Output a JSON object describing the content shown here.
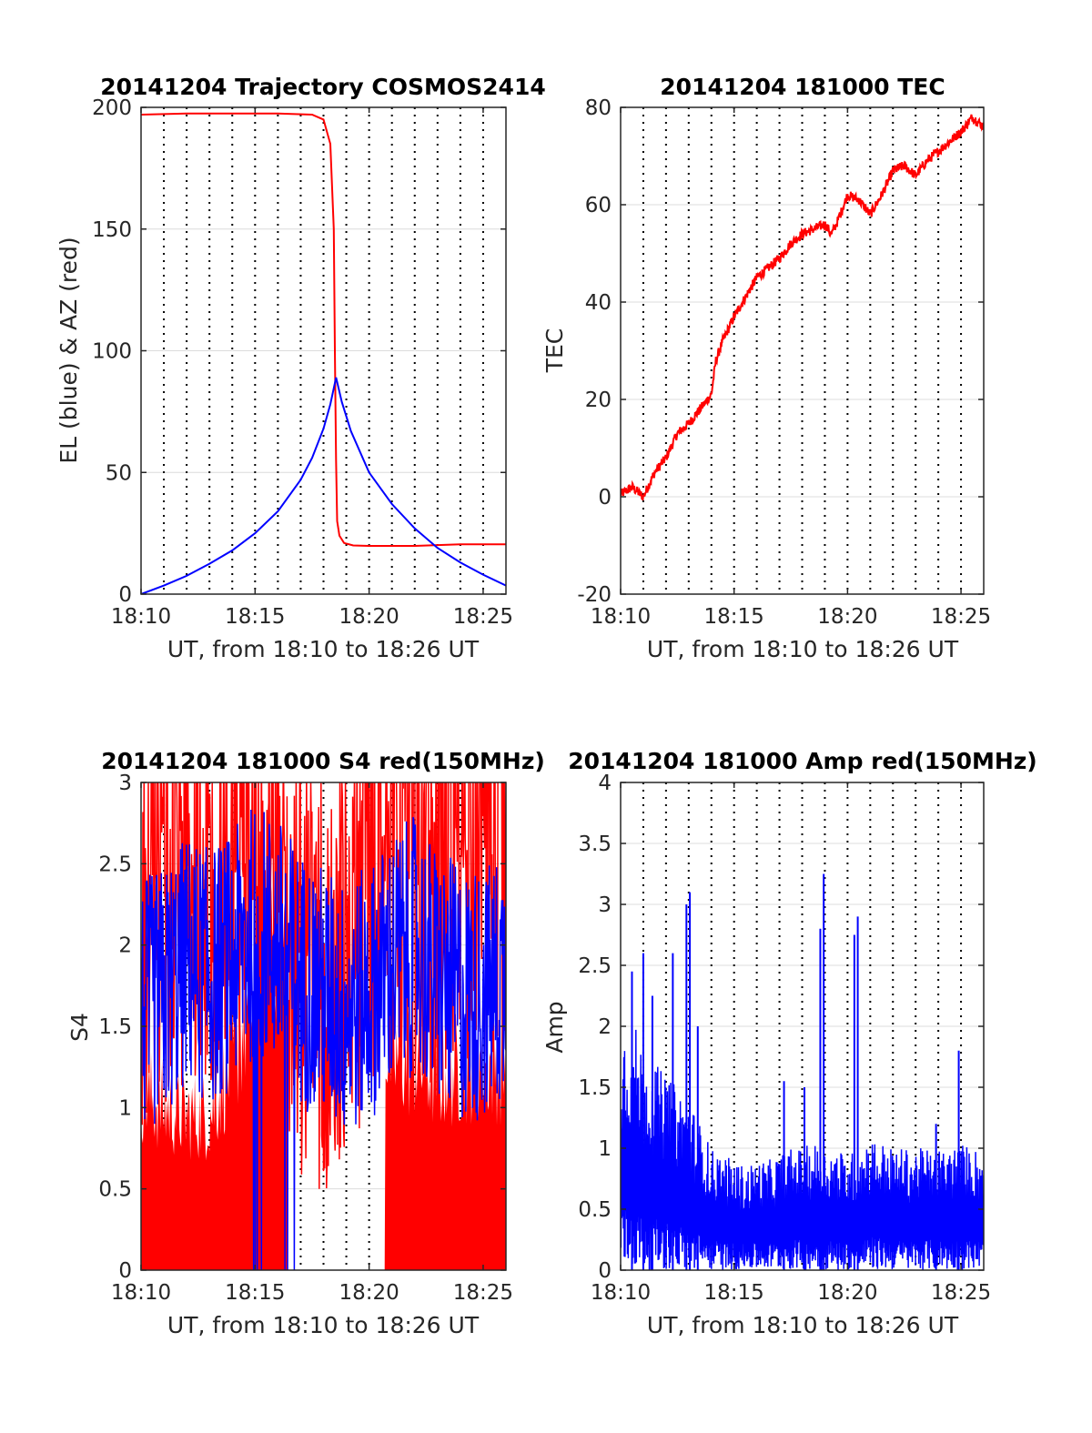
{
  "figure": {
    "background": "#ffffff"
  },
  "chart_data": [
    {
      "id": "trajectory",
      "type": "line",
      "title": "20141204 Trajectory COSMOS2414",
      "xlabel": "UT, from 18:10 to 18:26 UT",
      "ylabel": "EL (blue) & AZ (red)",
      "xlim": [
        0,
        16
      ],
      "ylim": [
        0,
        200
      ],
      "xticks": [
        0,
        5,
        10,
        15
      ],
      "xticklabels": [
        "18:10",
        "18:15",
        "18:20",
        "18:25"
      ],
      "yticks": [
        0,
        50,
        100,
        150,
        200
      ],
      "yticklabels": [
        "0",
        "50",
        "100",
        "150",
        "200"
      ],
      "grid": true,
      "series": [
        {
          "role": "azimuth",
          "color": "#ff0000",
          "x": [
            0,
            2,
            4,
            6,
            7.5,
            8.0,
            8.3,
            8.45,
            8.5,
            8.55,
            8.6,
            8.7,
            8.9,
            9.3,
            10,
            12,
            14,
            16
          ],
          "y": [
            197,
            197.5,
            197.5,
            197.5,
            197,
            195,
            185,
            150,
            100,
            55,
            30,
            24,
            21,
            20,
            19.8,
            19.8,
            20.5,
            20.5
          ]
        },
        {
          "role": "elevation",
          "color": "#0000ff",
          "x": [
            0,
            1,
            2,
            3,
            4,
            5,
            6,
            7,
            7.5,
            8,
            8.3,
            8.55,
            8.8,
            9.2,
            10,
            11,
            12,
            13,
            14,
            15,
            16
          ],
          "y": [
            0,
            3.5,
            7.5,
            12.5,
            18,
            25,
            34,
            47,
            56,
            68,
            78,
            89,
            79,
            67,
            50,
            37,
            27,
            19,
            13,
            8,
            3.5
          ]
        }
      ]
    },
    {
      "id": "tec",
      "type": "line",
      "title": "20141204 181000 TEC",
      "xlabel": "UT, from 18:10 to 18:26 UT",
      "ylabel": "TEC",
      "xlim": [
        0,
        16
      ],
      "ylim": [
        -20,
        80
      ],
      "xticks": [
        0,
        5,
        10,
        15
      ],
      "xticklabels": [
        "18:10",
        "18:15",
        "18:20",
        "18:25"
      ],
      "yticks": [
        -20,
        0,
        20,
        40,
        60,
        80
      ],
      "yticklabels": [
        "-20",
        "0",
        "20",
        "40",
        "60",
        "80"
      ],
      "grid": true,
      "series": [
        {
          "color": "#ff0000",
          "x": [
            0,
            0.5,
            1,
            1.5,
            2,
            2.5,
            3,
            3.5,
            4,
            4.2,
            4.5,
            5,
            5.5,
            6,
            6.5,
            7,
            7.5,
            8,
            8.5,
            9,
            9.3,
            9.6,
            10,
            10.5,
            11,
            11.5,
            12,
            12.5,
            13,
            13.5,
            14,
            14.5,
            15,
            15.5,
            16
          ],
          "y": [
            0.5,
            2,
            0,
            5,
            8,
            13,
            15,
            18,
            21,
            28,
            32,
            37,
            41,
            45,
            47,
            49,
            52,
            54,
            55,
            56,
            54,
            57,
            62,
            61,
            58,
            62,
            67,
            68,
            66,
            69,
            71,
            73,
            75,
            78,
            76
          ]
        }
      ]
    },
    {
      "id": "s4",
      "type": "line",
      "title": "20141204 181000 S4 red(150MHz)",
      "xlabel": "UT, from 18:10 to 18:26 UT",
      "ylabel": "S4",
      "xlim": [
        0,
        16
      ],
      "ylim": [
        0,
        3
      ],
      "xticks": [
        0,
        5,
        10,
        15
      ],
      "xticklabels": [
        "18:10",
        "18:15",
        "18:20",
        "18:25"
      ],
      "yticks": [
        0,
        0.5,
        1,
        1.5,
        2,
        2.5,
        3
      ],
      "yticklabels": [
        "0",
        "0.5",
        "1",
        "1.5",
        "2",
        "2.5",
        "3"
      ],
      "grid": true,
      "series": [
        {
          "role": "fill",
          "color": "#ff0000",
          "x": [
            0,
            1,
            2,
            3,
            4,
            4.5,
            5,
            5.5,
            6,
            6.5,
            7,
            7.5,
            8,
            8.5,
            9,
            9.5,
            10,
            10.5,
            11,
            12,
            13,
            14,
            15,
            16
          ],
          "y": [
            1.1,
            1.0,
            0.95,
            0.95,
            1.3,
            1.5,
            1.6,
            2.3,
            2.1,
            1.9,
            1.7,
            1.4,
            1.3,
            1.2,
            1.3,
            1.4,
            1.5,
            1.5,
            1.3,
            1.3,
            1.2,
            1.25,
            1.3,
            1.25
          ]
        },
        {
          "role": "noisy",
          "color": "#ff0000",
          "x": [
            0,
            1,
            2,
            3,
            4,
            5,
            6,
            7,
            8,
            9,
            10,
            11,
            12,
            13,
            14,
            15,
            16
          ],
          "y": [
            2.3,
            2.5,
            2.6,
            2.4,
            2.3,
            2.4,
            2.2,
            2.0,
            1.9,
            2.0,
            2.5,
            2.6,
            2.7,
            2.6,
            2.7,
            2.8,
            2.8
          ]
        },
        {
          "role": "noisy",
          "color": "#0000ff",
          "x": [
            0,
            1,
            2,
            3,
            4,
            5,
            6,
            7,
            8,
            9,
            10,
            11,
            12,
            13,
            14,
            15,
            16
          ],
          "y": [
            1.6,
            1.7,
            1.9,
            1.8,
            1.9,
            2.1,
            2.0,
            1.8,
            1.7,
            1.6,
            1.7,
            1.9,
            2.0,
            1.8,
            1.7,
            1.7,
            1.8
          ]
        }
      ]
    },
    {
      "id": "amp",
      "type": "line",
      "title": "20141204 181000 Amp red(150MHz)",
      "xlabel": "UT, from 18:10 to 18:26 UT",
      "ylabel": "Amp",
      "xlim": [
        0,
        16
      ],
      "ylim": [
        0,
        4
      ],
      "xticks": [
        0,
        5,
        10,
        15
      ],
      "xticklabels": [
        "18:10",
        "18:15",
        "18:20",
        "18:25"
      ],
      "yticks": [
        0,
        0.5,
        1,
        1.5,
        2,
        2.5,
        3,
        3.5,
        4
      ],
      "yticklabels": [
        "0",
        "0.5",
        "1",
        "1.5",
        "2",
        "2.5",
        "3",
        "3.5",
        "4"
      ],
      "grid": true,
      "series": [
        {
          "color": "#0000ff",
          "envelope_x": [
            0,
            0.5,
            1,
            1.5,
            2,
            2.5,
            3,
            3.5,
            4,
            4.5,
            5,
            5.5,
            6,
            6.5,
            7,
            7.5,
            8,
            8.5,
            9,
            9.5,
            10,
            10.5,
            11,
            11.5,
            12,
            12.5,
            13,
            13.5,
            14,
            14.5,
            15,
            15.5,
            16
          ],
          "envelope_y": [
            2.0,
            2.1,
            1.8,
            1.7,
            1.6,
            1.5,
            1.4,
            1.2,
            1.0,
            0.95,
            0.9,
            0.85,
            0.9,
            0.9,
            0.95,
            1.0,
            1.0,
            1.05,
            1.0,
            1.0,
            0.95,
            1.0,
            1.1,
            1.05,
            1.0,
            1.0,
            1.0,
            1.0,
            1.0,
            1.0,
            1.05,
            1.0,
            1.0
          ],
          "spikes_x": [
            0.5,
            1.0,
            1.4,
            2.3,
            2.9,
            3.05,
            3.4,
            7.2,
            8.1,
            8.8,
            8.95,
            10.3,
            10.45,
            13.9,
            14.9
          ],
          "spikes_y": [
            2.45,
            2.6,
            2.25,
            2.6,
            3.0,
            3.1,
            2.0,
            1.55,
            1.5,
            2.8,
            3.25,
            2.75,
            2.9,
            1.2,
            1.8
          ]
        }
      ]
    }
  ]
}
